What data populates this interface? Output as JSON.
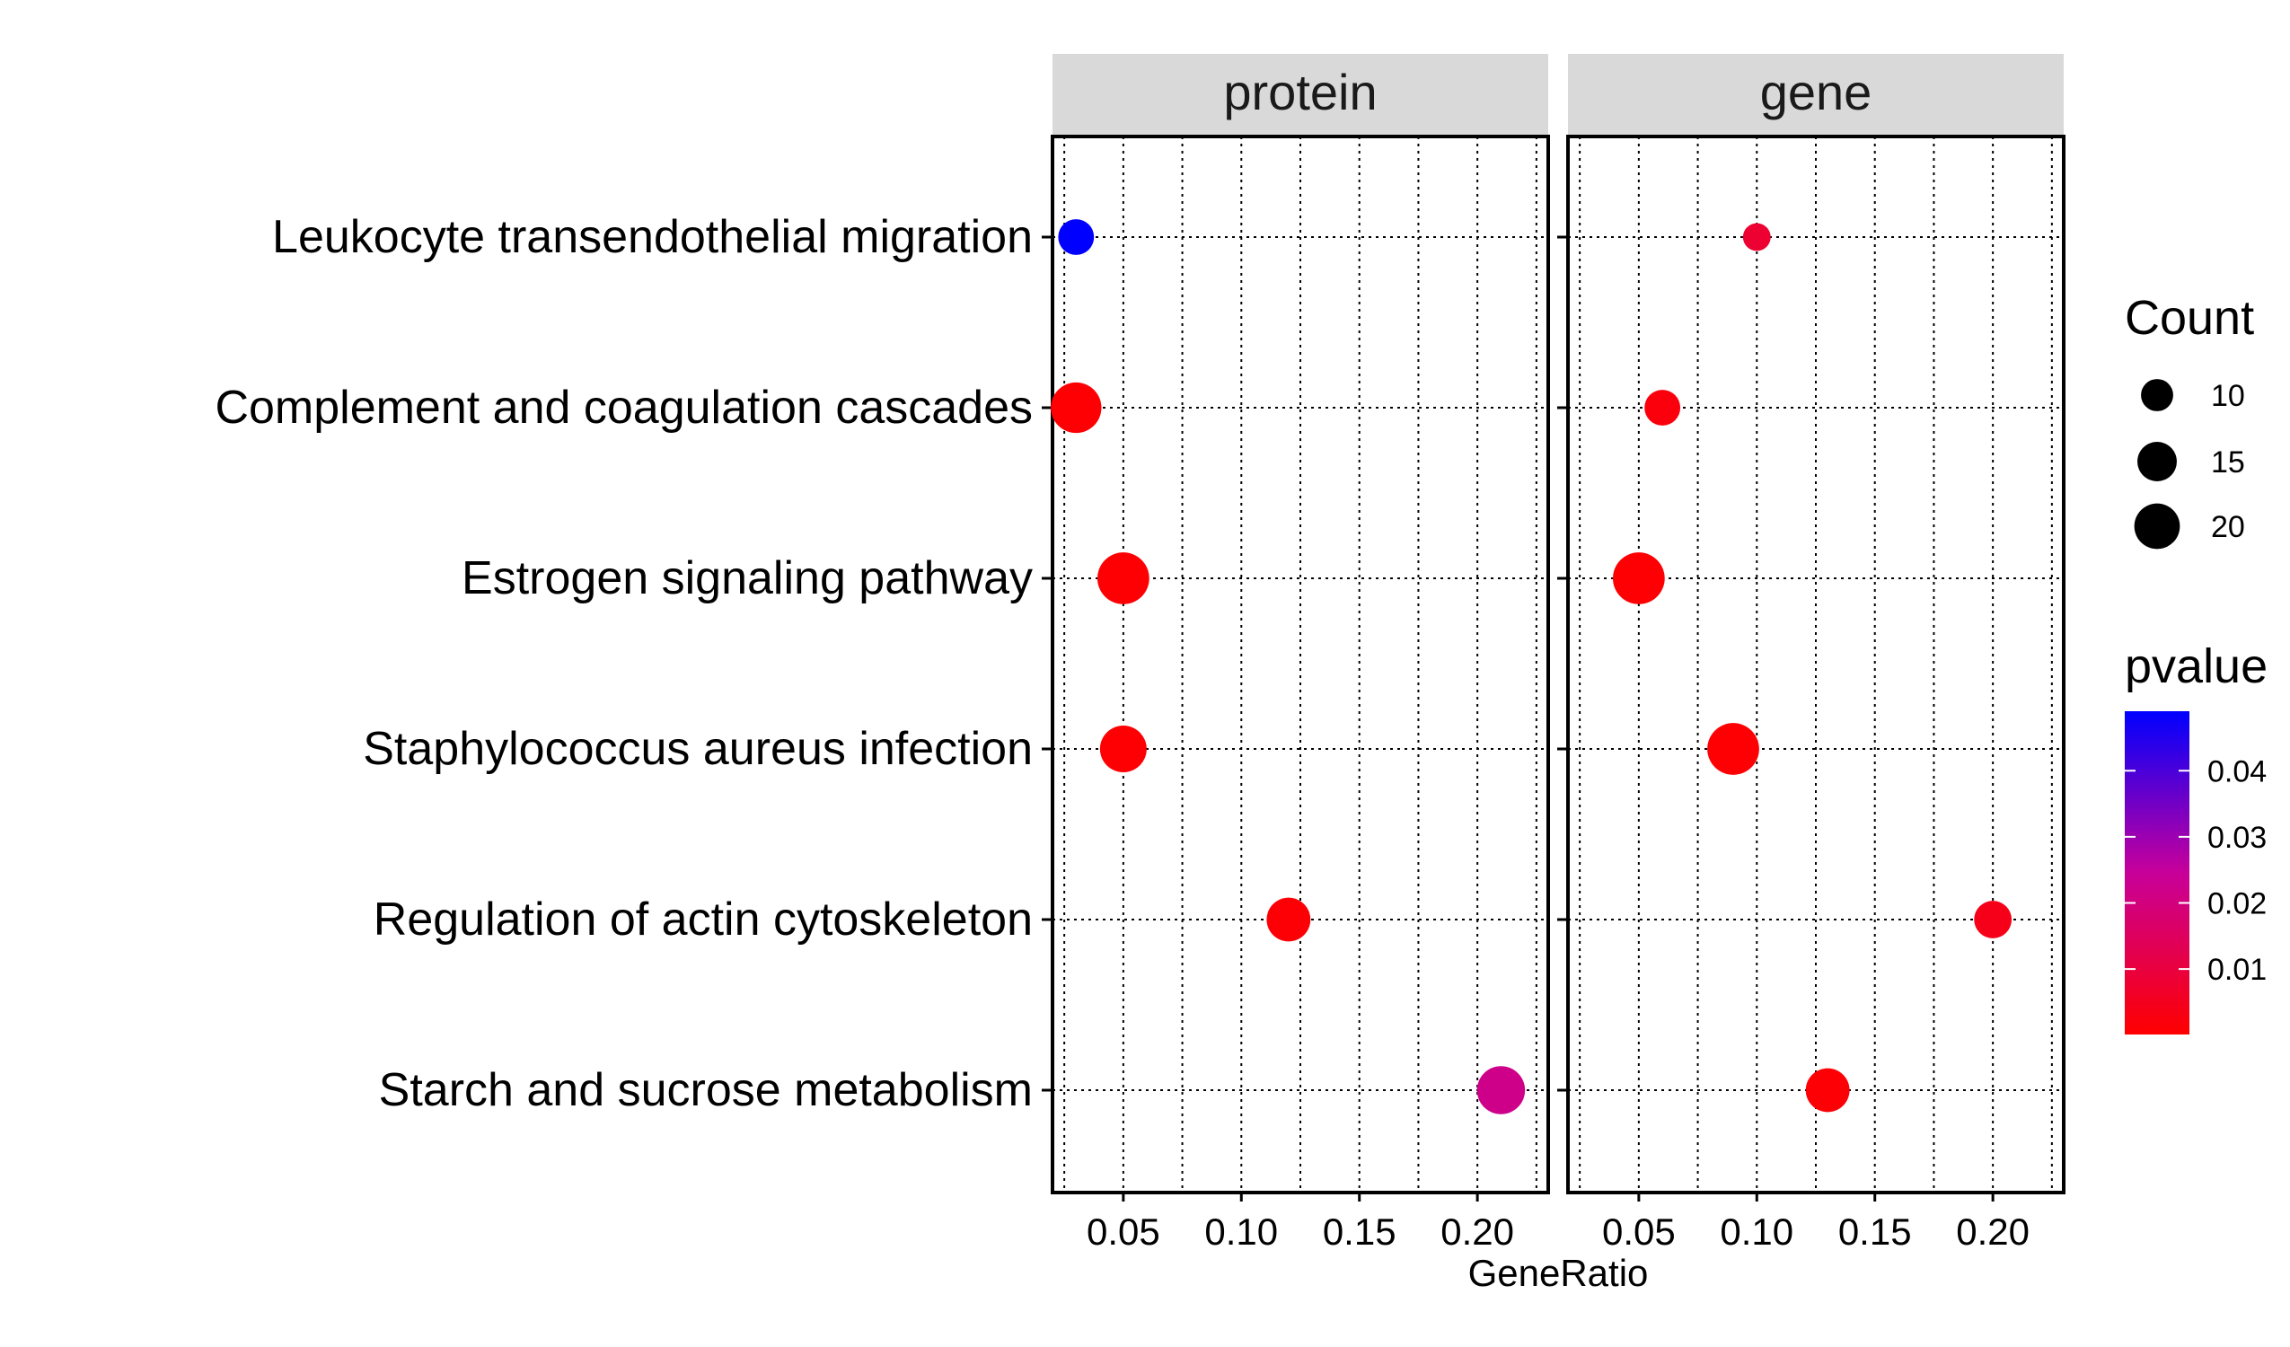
{
  "chart_data": {
    "type": "scatter",
    "title": "",
    "xlabel": "GeneRatio",
    "ylabel": "",
    "xlim": [
      0.02,
      0.23
    ],
    "xticks": [
      "0.05",
      "0.10",
      "0.15",
      "0.20"
    ],
    "grid": true,
    "legend_position": "right",
    "categories": [
      "Leukocyte transendothelial migration",
      "Complement and coagulation cascades",
      "Estrogen signaling pathway",
      "Staphylococcus aureus infection",
      "Regulation of actin cytoskeleton",
      "Starch and sucrose metabolism"
    ],
    "facets": [
      {
        "label": "protein",
        "points": [
          {
            "category": "Leukocyte transendothelial migration",
            "x": 0.03,
            "count": 10,
            "pvalue": 0.049
          },
          {
            "category": "Complement and coagulation cascades",
            "x": 0.03,
            "count": 20,
            "pvalue": 0.0005
          },
          {
            "category": "Estrogen signaling pathway",
            "x": 0.05,
            "count": 21,
            "pvalue": 0.0005
          },
          {
            "category": "Staphylococcus aureus infection",
            "x": 0.05,
            "count": 17,
            "pvalue": 0.0005
          },
          {
            "category": "Regulation of actin cytoskeleton",
            "x": 0.12,
            "count": 15,
            "pvalue": 0.001
          },
          {
            "category": "Starch and sucrose metabolism",
            "x": 0.21,
            "count": 18,
            "pvalue": 0.022
          }
        ]
      },
      {
        "label": "gene",
        "points": [
          {
            "category": "Leukocyte transendothelial migration",
            "x": 0.1,
            "count": 6,
            "pvalue": 0.008
          },
          {
            "category": "Complement and coagulation cascades",
            "x": 0.06,
            "count": 10,
            "pvalue": 0.002
          },
          {
            "category": "Estrogen signaling pathway",
            "x": 0.05,
            "count": 21,
            "pvalue": 0.0005
          },
          {
            "category": "Staphylococcus aureus infection",
            "x": 0.09,
            "count": 21,
            "pvalue": 0.0005
          },
          {
            "category": "Regulation of actin cytoskeleton",
            "x": 0.2,
            "count": 11,
            "pvalue": 0.004
          },
          {
            "category": "Starch and sucrose metabolism",
            "x": 0.13,
            "count": 15,
            "pvalue": 0.001
          }
        ]
      }
    ],
    "size_legend": {
      "title": "Count",
      "values": [
        10,
        15,
        20
      ],
      "labels": [
        "10",
        "15",
        "20"
      ]
    },
    "color_legend": {
      "title": "pvalue",
      "range": [
        0.0001,
        0.049
      ],
      "ticks": [
        0.01,
        0.02,
        0.03,
        0.04
      ],
      "labels": [
        "0.01",
        "0.02",
        "0.03",
        "0.04"
      ],
      "low_color": "#ff0000",
      "high_color": "#0000ff"
    }
  }
}
